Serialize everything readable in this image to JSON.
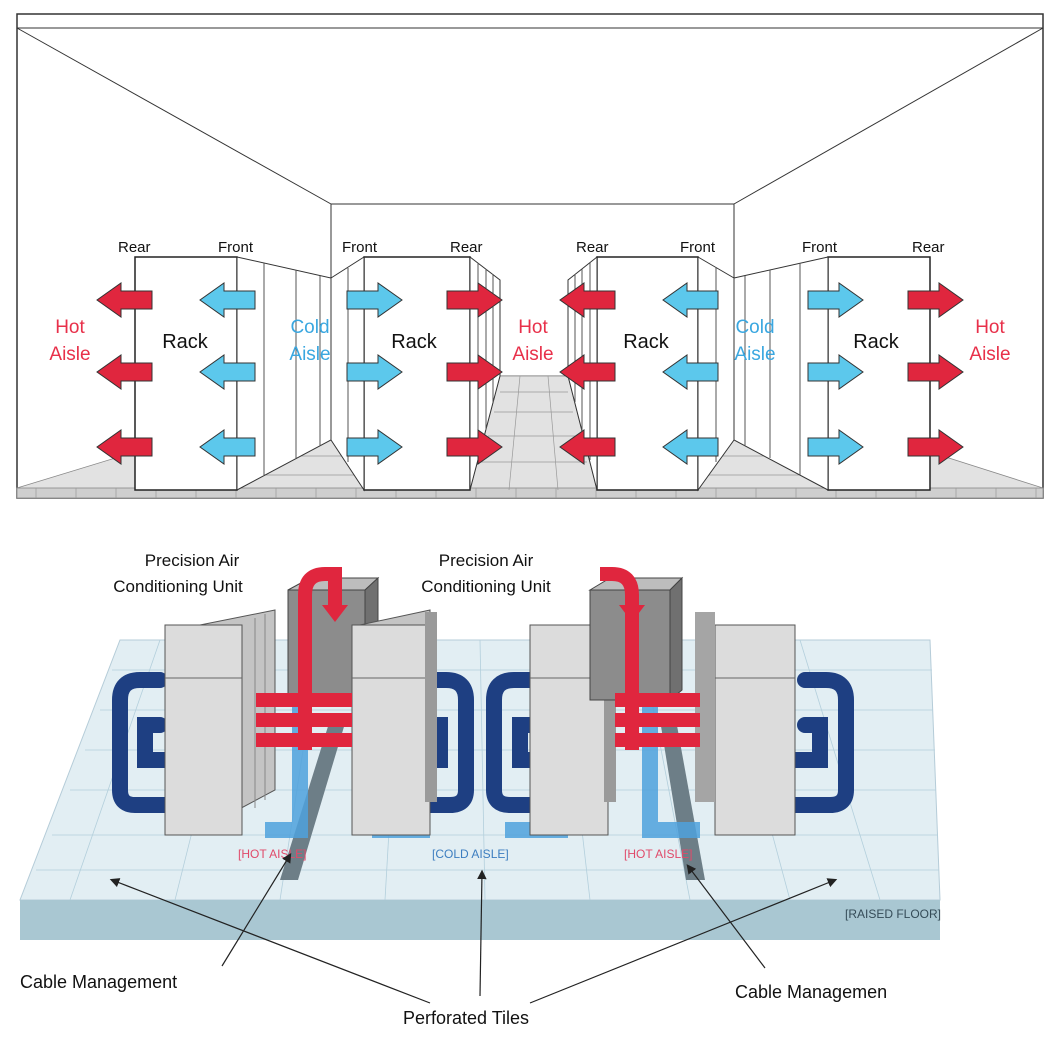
{
  "top_diagram": {
    "rear_label": "Rear",
    "front_label": "Front",
    "rack_label": "Rack",
    "hot_aisle": {
      "line1": "Hot",
      "line2": "Aisle"
    },
    "cold_aisle": {
      "line1": "Cold",
      "line2": "Aisle"
    }
  },
  "bottom_diagram": {
    "pac_label_line1": "Precision Air",
    "pac_label_line2": "Conditioning Unit",
    "hot_aisle_tag": "[HOT AISLE]",
    "cold_aisle_tag": "[COLD AISLE]",
    "raised_floor_tag": "[RAISED FLOOR]",
    "cable_management_label": "Cable Management",
    "cable_management_label_right": "Cable Managemen",
    "perforated_tiles_label": "Perforated Tiles"
  },
  "colors": {
    "hot": "#e0263e",
    "hot_text": "#e8304a",
    "cold": "#5cc8ec",
    "cold_text": "#3aa7e0",
    "return_air": "#1e3f82",
    "supply_air": "#4fa2dd",
    "floor": "#cfe0ea"
  }
}
